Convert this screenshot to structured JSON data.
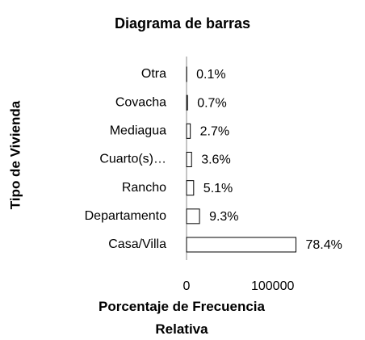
{
  "chart_data": {
    "type": "bar",
    "orientation": "horizontal",
    "title": "Diagrama de barras",
    "x_label": "Porcentaje de Frecuencia Relativa",
    "y_label": "Tipo de Vivienda",
    "categories": [
      "Casa/Villa",
      "Departamento",
      "Rancho",
      "Cuarto(s)…",
      "Mediagua",
      "Covacha",
      "Otra"
    ],
    "values": [
      127000,
      15070,
      8260,
      5830,
      4370,
      1130,
      160
    ],
    "bar_labels": [
      "78.4%",
      "9.3%",
      "5.1%",
      "3.6%",
      "2.7%",
      "0.7%",
      "0.1%"
    ],
    "color": "#ffffff",
    "edge_color": "#000000",
    "xlim": [
      0,
      135000
    ],
    "xticks": [
      0,
      100000
    ],
    "grid": false
  }
}
